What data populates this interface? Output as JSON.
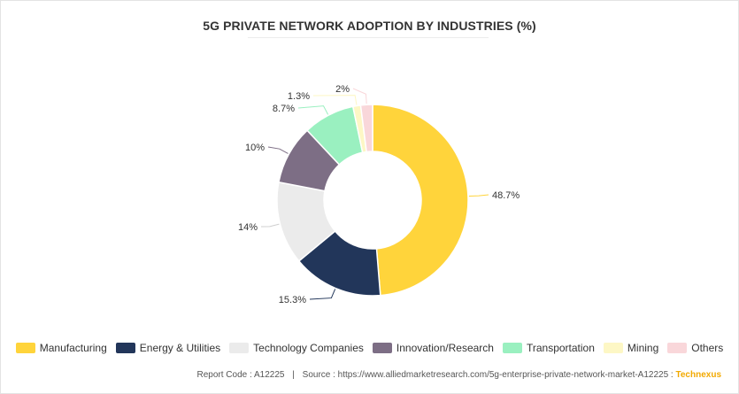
{
  "chart_data": {
    "type": "pie",
    "title": "5G PRIVATE NETWORK ADOPTION BY INDUSTRIES (%)",
    "categories": [
      "Manufacturing",
      "Energy & Utilities",
      "Technology Companies",
      "Innovation/Research",
      "Transportation",
      "Mining",
      "Others"
    ],
    "values": [
      48.7,
      15.3,
      14,
      10,
      8.7,
      1.3,
      2
    ],
    "labels": [
      "48.7%",
      "15.3%",
      "14%",
      "10%",
      "8.7%",
      "1.3%",
      "2%"
    ],
    "colors": [
      "#FFD43B",
      "#22365A",
      "#EBEBEB",
      "#7D6E85",
      "#9AF0C0",
      "#FDF7C5",
      "#F9D7DA"
    ],
    "legend_position": "bottom",
    "style": "donut"
  },
  "footer": {
    "report_code": "Report Code : A12225",
    "separator": "|",
    "source": "Source : https://www.alliedmarketresearch.com/5g-enterprise-private-network-market-A12225 :",
    "brand": "Technexus"
  }
}
